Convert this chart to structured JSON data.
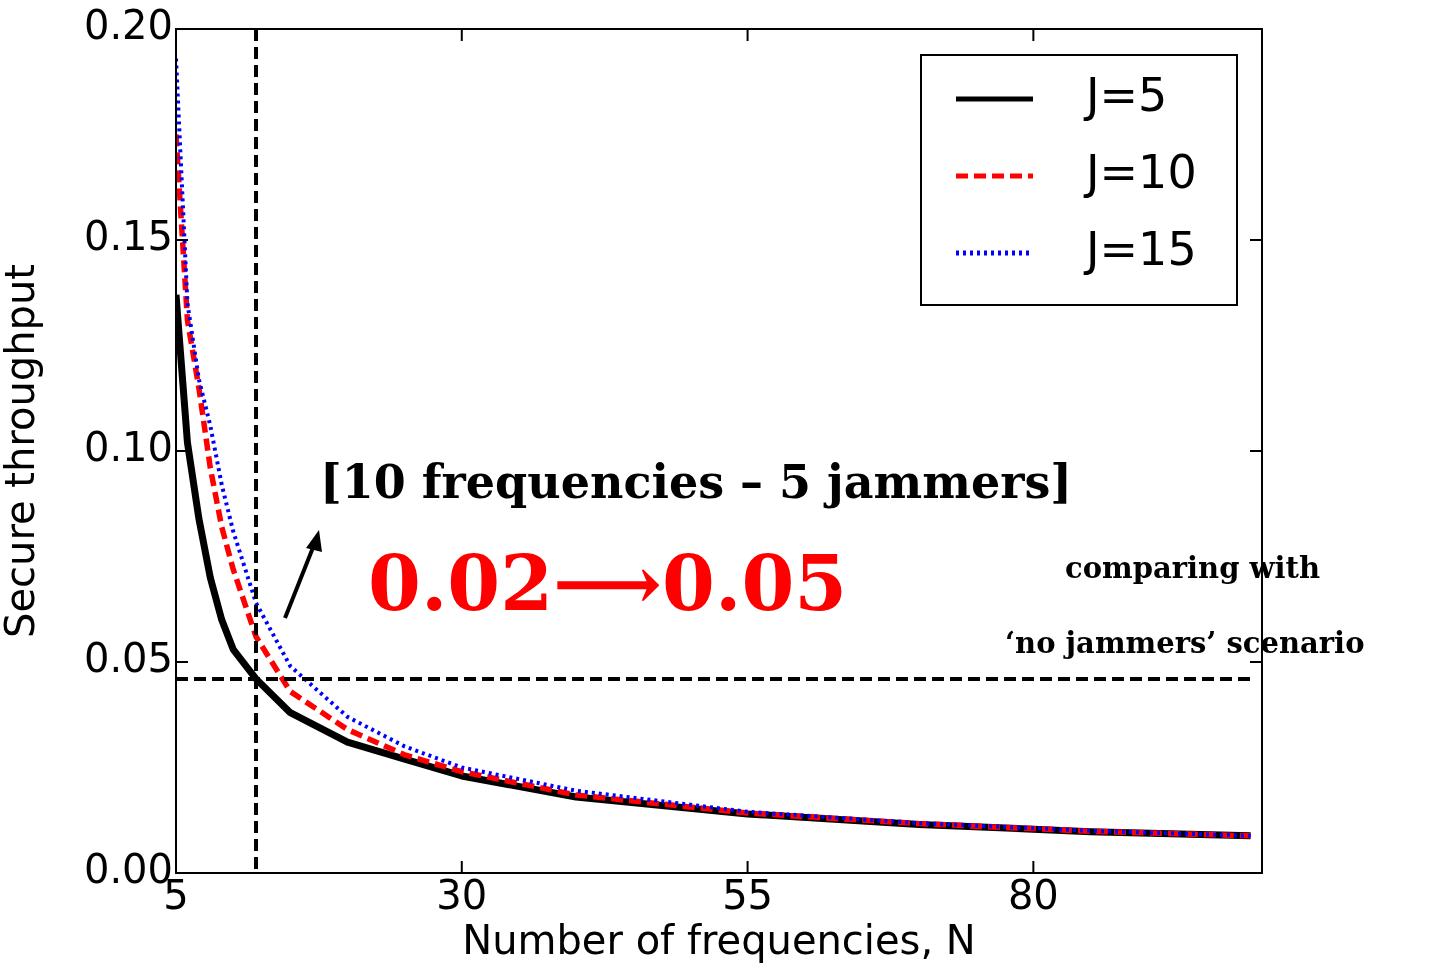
{
  "chart_data": {
    "type": "line",
    "xlabel": "Number of frequencies, N",
    "ylabel": "Secure throughput",
    "x": [
      5,
      6,
      7,
      8,
      9,
      10,
      12,
      15,
      20,
      25,
      30,
      40,
      55,
      70,
      85,
      99
    ],
    "series": [
      {
        "name": "J=5",
        "color": "#000000",
        "line_style": "solid",
        "values": [
          0.137,
          0.102,
          0.084,
          0.07,
          0.06,
          0.053,
          0.046,
          0.038,
          0.031,
          0.027,
          0.023,
          0.018,
          0.014,
          0.0115,
          0.0098,
          0.0088
        ]
      },
      {
        "name": "J=10",
        "color": "#ff0000",
        "line_style": "dashed",
        "values": [
          0.175,
          0.131,
          0.115,
          0.096,
          0.082,
          0.072,
          0.056,
          0.043,
          0.034,
          0.028,
          0.024,
          0.0185,
          0.0142,
          0.0117,
          0.0099,
          0.0088
        ]
      },
      {
        "name": "J=15",
        "color": "#0000ff",
        "line_style": "dotted",
        "values": [
          0.193,
          0.135,
          0.117,
          0.106,
          0.092,
          0.081,
          0.064,
          0.049,
          0.037,
          0.03,
          0.025,
          0.0195,
          0.0145,
          0.0118,
          0.01,
          0.0088
        ]
      }
    ],
    "xlim": [
      5,
      100
    ],
    "xticks": [
      5,
      30,
      55,
      80
    ],
    "ylim": [
      0,
      0.2
    ],
    "yticks": [
      {
        "value": 0,
        "label": "0.00"
      },
      {
        "value": 0.05,
        "label": "0.05"
      },
      {
        "value": 0.1,
        "label": "0.10"
      },
      {
        "value": 0.15,
        "label": "0.15"
      },
      {
        "value": 0.2,
        "label": "0.20"
      }
    ],
    "ref_lines": [
      {
        "axis": "x",
        "value": 12,
        "color": "#000000",
        "line_style": "dashed"
      },
      {
        "axis": "y",
        "value": 0.046,
        "color": "#000000",
        "line_style": "dashed"
      }
    ],
    "annotations": [
      "[10 frequencies – 5 jammers]",
      "0.02⟶0.05",
      "comparing with",
      "‘no jammers’ scenario"
    ],
    "legend": "top right",
    "grid": false,
    "marker": "none"
  }
}
